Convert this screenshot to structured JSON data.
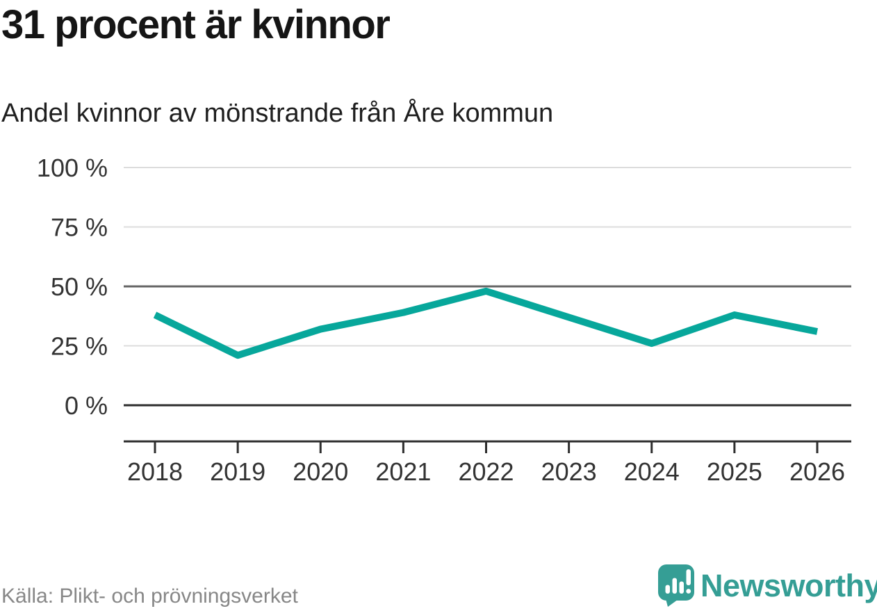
{
  "chart_data": {
    "type": "line",
    "title": "31 procent är kvinnor",
    "subtitle": "Andel kvinnor av mönstrande från Åre kommun",
    "categories": [
      "2018",
      "2019",
      "2020",
      "2021",
      "2022",
      "2023",
      "2024",
      "2025",
      "2026"
    ],
    "series": [
      {
        "name": "Andel kvinnor av mönstrande",
        "values": [
          38,
          21,
          32,
          39,
          48,
          37,
          26,
          38,
          31
        ]
      }
    ],
    "unit": "%",
    "ylim": [
      0,
      100
    ],
    "yticks": [
      100,
      75,
      50,
      25,
      0
    ],
    "ytick_labels": [
      "100 %",
      "75 %",
      "50 %",
      "25 %",
      "0 %"
    ],
    "grid": true,
    "legend": "none",
    "emphasized_gridlines": [
      50,
      0
    ],
    "line_color": "#07a79b",
    "axis_color": "#2e2e2e",
    "minor_grid_color": "#dcdcdc",
    "emphasis_grid_color": "#646464",
    "label_color": "#333333"
  },
  "footer": {
    "source": "Källa: Plikt- och prövningsverket",
    "brand": {
      "name": "Newsworthy",
      "color": "#359e95",
      "icon": "newsworthy-speech-bubble-bar-chart-icon"
    }
  }
}
